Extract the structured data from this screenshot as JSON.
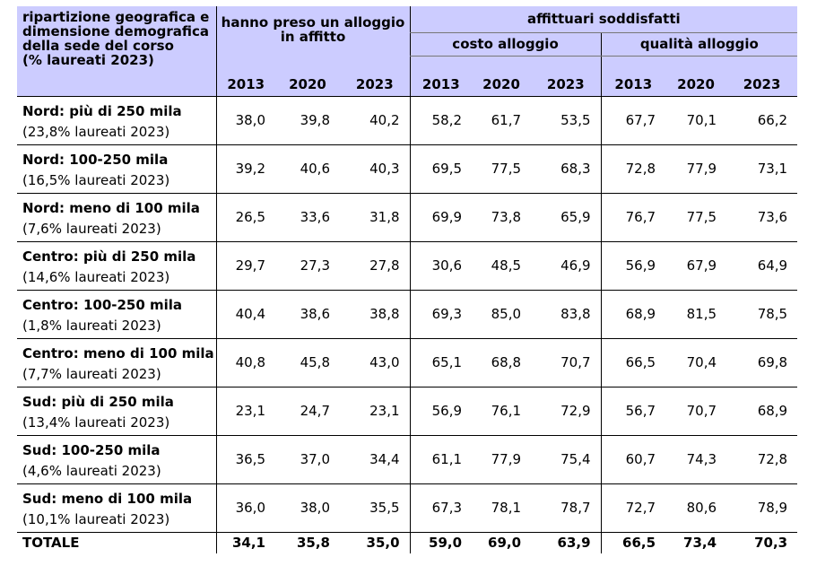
{
  "header": {
    "col0": [
      "ripartizione geografica e",
      "dimensione demografica",
      "della sede del corso",
      "(% laureati 2023)"
    ],
    "group1": [
      "hanno preso un alloggio",
      "in affitto"
    ],
    "group2": "affittuari soddisfatti",
    "sub1": "costo alloggio",
    "sub2": "qualità alloggio",
    "years": [
      "2013",
      "2020",
      "2023",
      "2013",
      "2020",
      "2023",
      "2013",
      "2020",
      "2023"
    ]
  },
  "rows": [
    {
      "name": "Nord: più di 250 mila",
      "note": "(23,8% laureati 2023)",
      "values": [
        "38,0",
        "39,8",
        "40,2",
        "58,2",
        "61,7",
        "53,5",
        "67,7",
        "70,1",
        "66,2"
      ]
    },
    {
      "name": "Nord: 100-250 mila",
      "note": "(16,5% laureati 2023)",
      "values": [
        "39,2",
        "40,6",
        "40,3",
        "69,5",
        "77,5",
        "68,3",
        "72,8",
        "77,9",
        "73,1"
      ]
    },
    {
      "name": "Nord: meno di 100 mila",
      "note": "(7,6% laureati 2023)",
      "values": [
        "26,5",
        "33,6",
        "31,8",
        "69,9",
        "73,8",
        "65,9",
        "76,7",
        "77,5",
        "73,6"
      ]
    },
    {
      "name": "Centro: più di 250 mila",
      "note": "(14,6% laureati 2023)",
      "values": [
        "29,7",
        "27,3",
        "27,8",
        "30,6",
        "48,5",
        "46,9",
        "56,9",
        "67,9",
        "64,9"
      ]
    },
    {
      "name": "Centro: 100-250 mila",
      "note": "(1,8% laureati 2023)",
      "values": [
        "40,4",
        "38,6",
        "38,8",
        "69,3",
        "85,0",
        "83,8",
        "68,9",
        "81,5",
        "78,5"
      ]
    },
    {
      "name": "Centro: meno di 100 mila",
      "note": "(7,7% laureati 2023)",
      "values": [
        "40,8",
        "45,8",
        "43,0",
        "65,1",
        "68,8",
        "70,7",
        "66,5",
        "70,4",
        "69,8"
      ]
    },
    {
      "name": "Sud: più di 250 mila",
      "note": "(13,4% laureati 2023)",
      "values": [
        "23,1",
        "24,7",
        "23,1",
        "56,9",
        "76,1",
        "72,9",
        "56,7",
        "70,7",
        "68,9"
      ]
    },
    {
      "name": "Sud: 100-250 mila",
      "note": "(4,6% laureati 2023)",
      "values": [
        "36,5",
        "37,0",
        "34,4",
        "61,1",
        "77,9",
        "75,4",
        "60,7",
        "74,3",
        "72,8"
      ]
    },
    {
      "name": "Sud: meno di 100 mila",
      "note": "(10,1% laureati 2023)",
      "values": [
        "36,0",
        "38,0",
        "35,5",
        "67,3",
        "78,1",
        "78,7",
        "72,7",
        "80,6",
        "78,9"
      ]
    }
  ],
  "total": {
    "name": "TOTALE",
    "values": [
      "34,1",
      "35,8",
      "35,0",
      "59,0",
      "69,0",
      "63,9",
      "66,5",
      "73,4",
      "70,3"
    ]
  }
}
